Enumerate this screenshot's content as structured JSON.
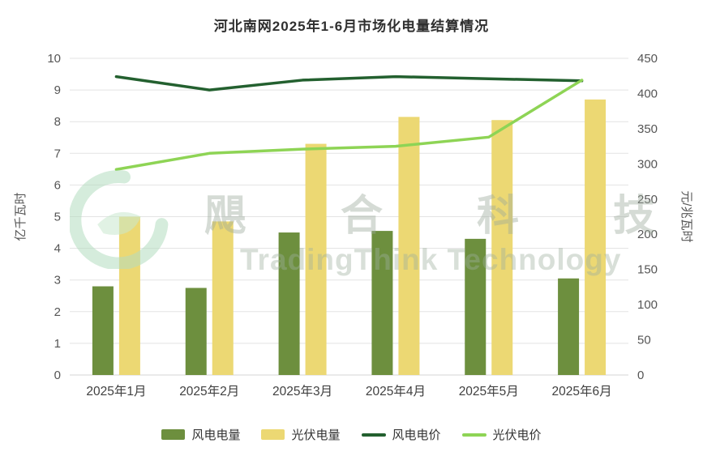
{
  "title": "河北南网2025年1-6月市场化电量结算情况",
  "watermark": {
    "line1": "飓合科技",
    "line2": "TradingThink Technology",
    "logo": "green-swirl-logo"
  },
  "chart_data": {
    "type": "bar",
    "subtype": "combo-bar-line-dual-axis",
    "categories": [
      "2025年1月",
      "2025年2月",
      "2025年3月",
      "2025年4月",
      "2025年5月",
      "2025年6月"
    ],
    "series": [
      {
        "key": "wind-energy",
        "name": "风电电量",
        "type": "bar",
        "axis": "left",
        "color": "#6d8f3e",
        "values": [
          2.8,
          2.75,
          4.5,
          4.55,
          4.3,
          3.05
        ]
      },
      {
        "key": "pv-energy",
        "name": "光伏电量",
        "type": "bar",
        "axis": "left",
        "color": "#ecd873",
        "values": [
          5.0,
          4.85,
          7.3,
          8.15,
          8.05,
          8.7
        ]
      },
      {
        "key": "wind-price",
        "name": "风电电价",
        "type": "line",
        "axis": "right",
        "color": "#23602f",
        "values": [
          424,
          405,
          419,
          424,
          421,
          418
        ]
      },
      {
        "key": "pv-price",
        "name": "光伏电价",
        "type": "line",
        "axis": "right",
        "color": "#8ed455",
        "values": [
          292,
          315,
          321,
          325,
          338,
          419
        ]
      }
    ],
    "left_axis": {
      "label": "亿千瓦时",
      "min": 0,
      "max": 10,
      "step": 1,
      "ticks": [
        0,
        1,
        2,
        3,
        4,
        5,
        6,
        7,
        8,
        9,
        10
      ]
    },
    "right_axis": {
      "label": "元/兆瓦时",
      "min": 0,
      "max": 450,
      "step": 50,
      "ticks": [
        0,
        50,
        100,
        150,
        200,
        250,
        300,
        350,
        400,
        450
      ]
    },
    "grid": true,
    "legend_position": "bottom",
    "colors": {
      "grid_line": "#e3e3e3",
      "tick_text": "#555555",
      "title_text": "#2f2f2f"
    }
  }
}
